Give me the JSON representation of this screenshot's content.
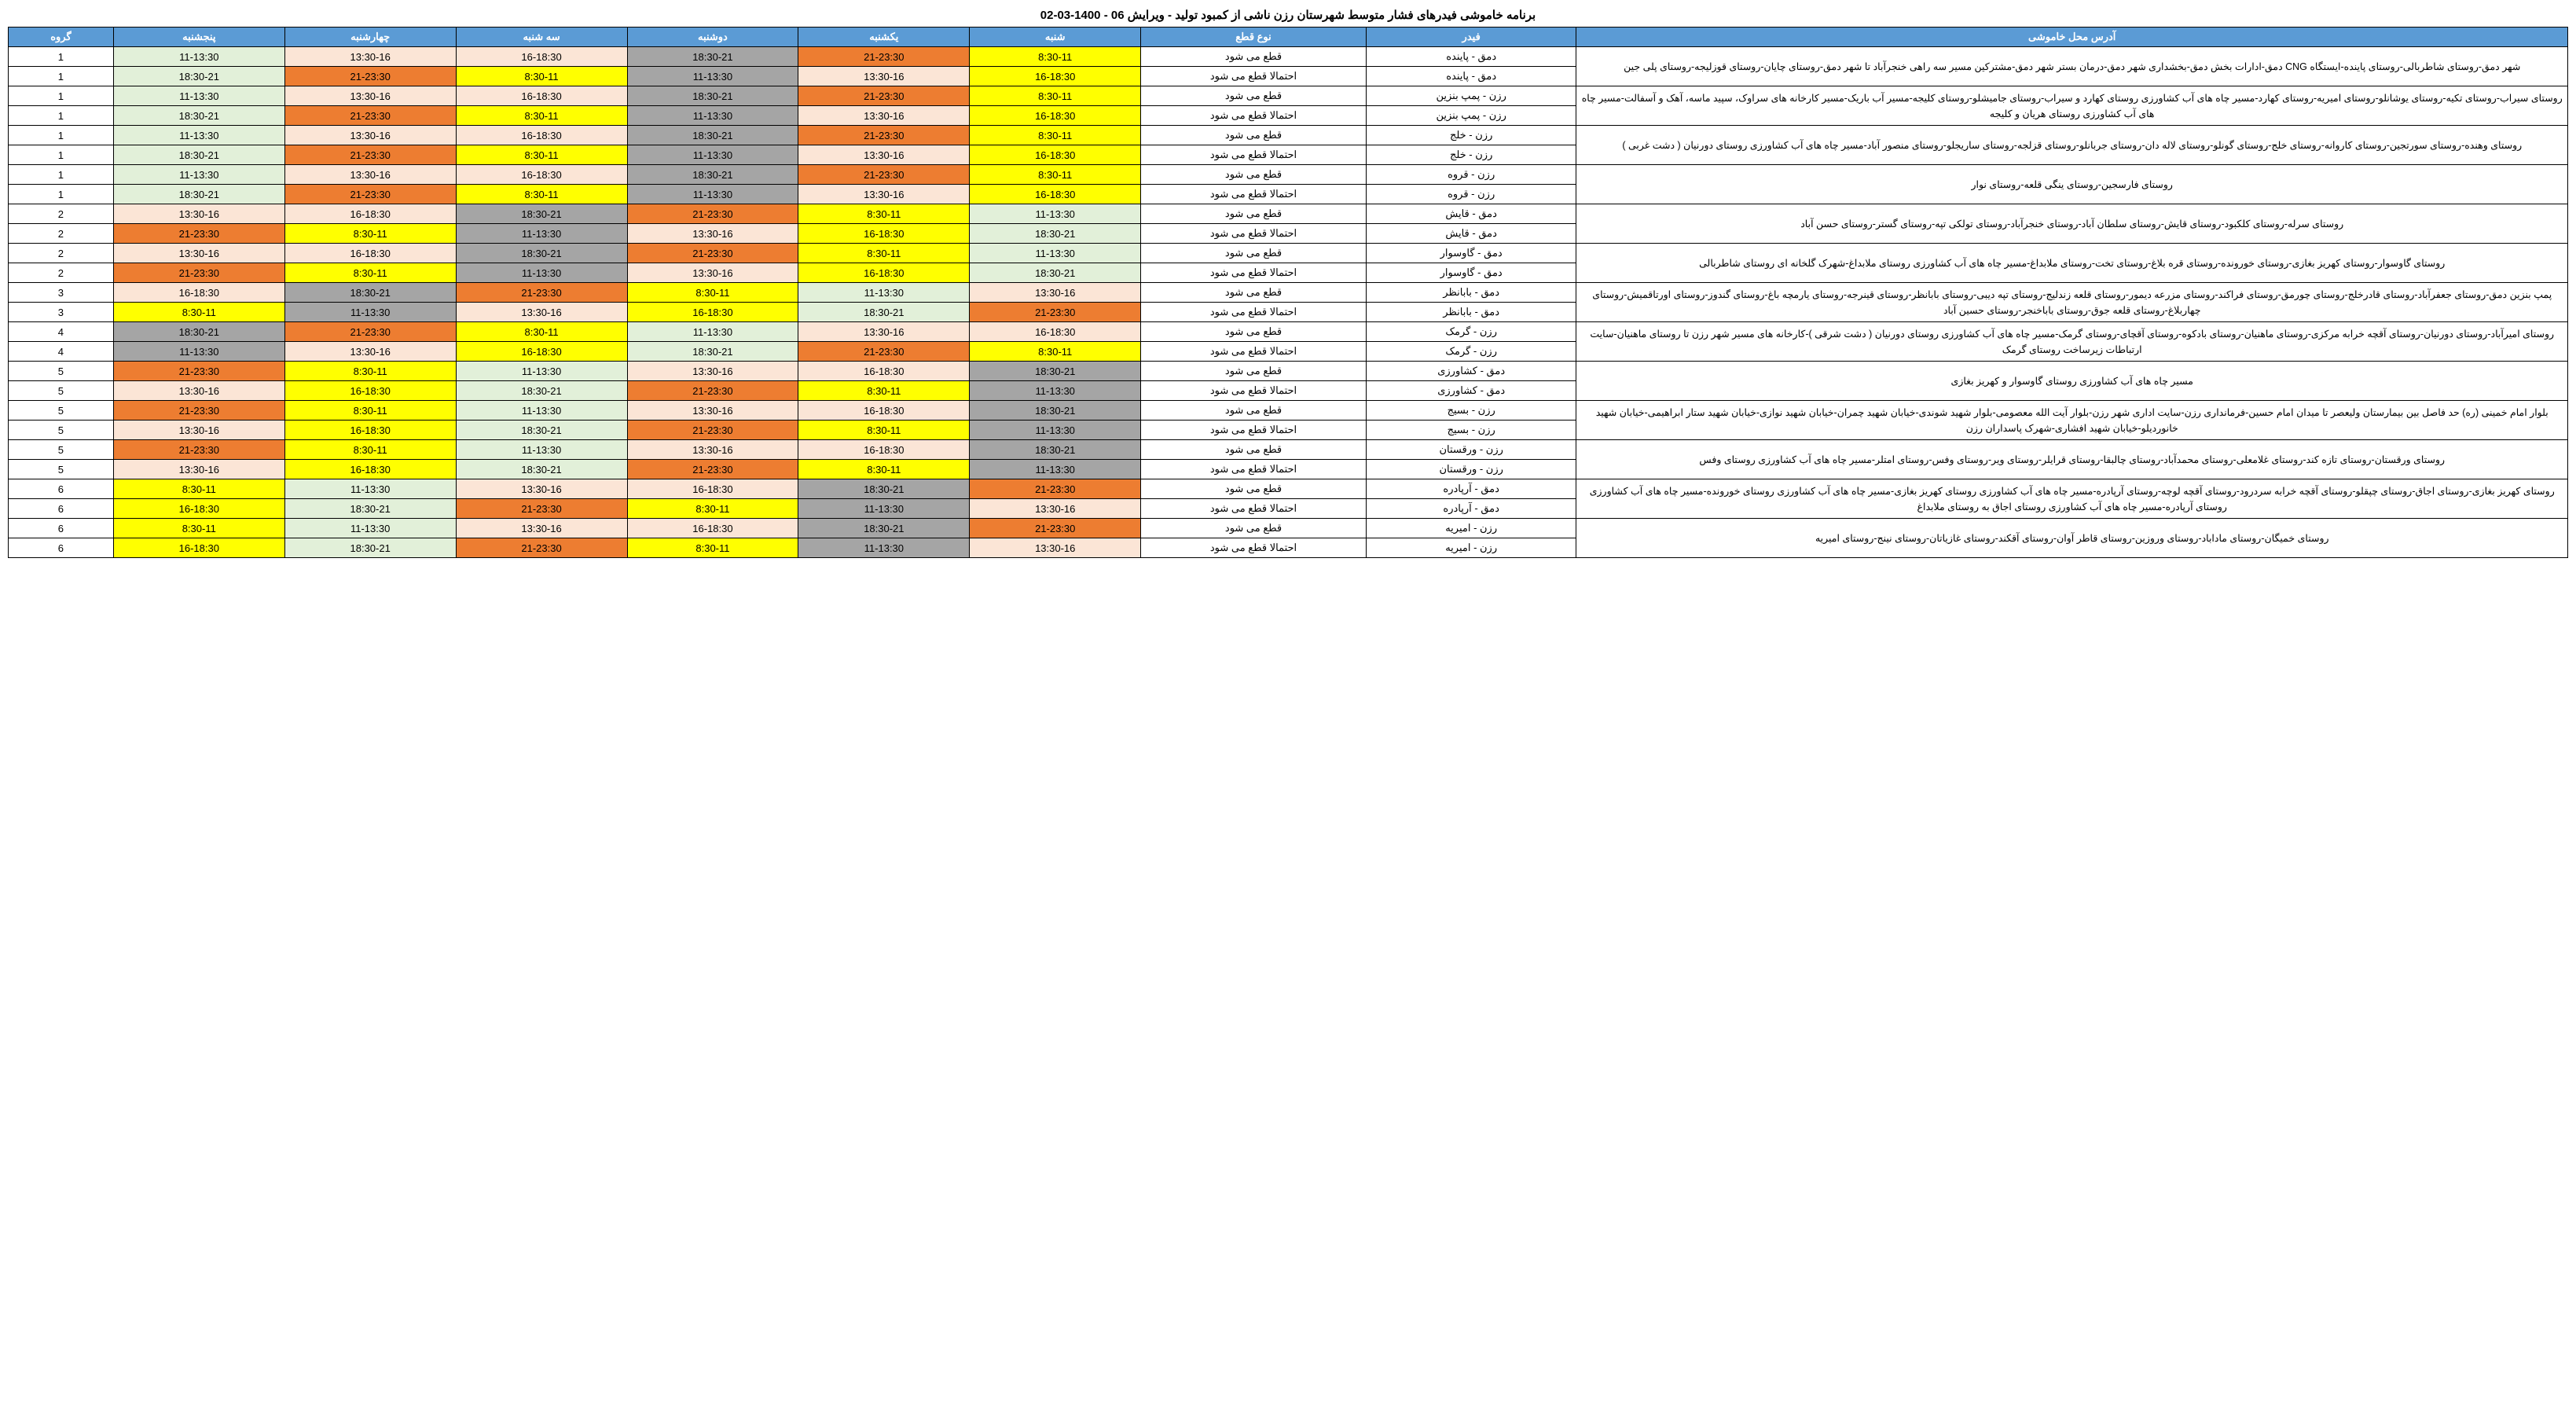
{
  "title": "برنامه خاموشی فیدرهای فشار متوسط شهرستان رزن ناشی از کمبود تولید - ویرایش 06 - 1400-03-02",
  "colors": {
    "header": "#5b9bd5",
    "c1": "#ffff00",
    "c2": "#ed7d31",
    "c3": "#a5a5a5",
    "c4": "#fbe5d6",
    "c5": "#e2f0d9"
  },
  "headers": {
    "address": "آدرس محل خاموشی",
    "feeder": "فیدر",
    "type": "نوع قطع",
    "sat": "شنبه",
    "sun": "یکشنبه",
    "mon": "دوشنبه",
    "tue": "سه شنبه",
    "wed": "چهارشنبه",
    "thu": "پنجشنبه",
    "group": "گروه"
  },
  "slots": {
    "s1": "8:30-11",
    "s2": "11-13:30",
    "s3": "13:30-16",
    "s4": "16-18:30",
    "s5": "18:30-21",
    "s6": "21-23:30"
  },
  "types": {
    "q": "قطع می شود",
    "e": "احتمالا قطع می شود"
  },
  "pairs": [
    {
      "addr": "شهر دمق-روستای شاطربالی-روستای پاینده-ایستگاه CNG دمق-ادارات بخش دمق-بخشداری شهر دمق-درمان بستر شهر دمق-مشترکین مسیر سه راهی خنجرآباد تا شهر دمق-روستای چایان-روستای قوزلیجه-روستای پلی جین",
      "feeder": "دمق - پاینده",
      "group": "1",
      "a": [
        "s1",
        "s6",
        "s5",
        "s4",
        "s3",
        "s2"
      ],
      "ac": [
        "c1",
        "c2",
        "c3",
        "c4",
        "c4",
        "c5"
      ],
      "b": [
        "s4",
        "s3",
        "s2",
        "s1",
        "s6",
        "s5"
      ],
      "bc": [
        "c1",
        "c4",
        "c3",
        "c1",
        "c2",
        "c5"
      ]
    },
    {
      "addr": "روستای سیراب-روستای تکیه-روستای یوشانلو-روستای امیریه-روستای کهارد-مسیر چاه های آب کشاورزی روستای کهارد و سیراب-روستای جامیشلو-روستای کلیجه-مسیر آب باریک-مسیر کارخانه های سراوک، سپید ماسه، آهک و آسفالت-مسیر چاه های آب کشاورزی روستای هریان و کلیجه",
      "feeder": "رزن - پمپ بنزین",
      "group": "1",
      "a": [
        "s1",
        "s6",
        "s5",
        "s4",
        "s3",
        "s2"
      ],
      "ac": [
        "c1",
        "c2",
        "c3",
        "c4",
        "c4",
        "c5"
      ],
      "b": [
        "s4",
        "s3",
        "s2",
        "s1",
        "s6",
        "s5"
      ],
      "bc": [
        "c1",
        "c4",
        "c3",
        "c1",
        "c2",
        "c5"
      ]
    },
    {
      "addr": "روستای وهنده-روستای سورتجین-روستای کاروانه-روستای خلج-روستای گونلو-روستای لاله دان-روستای جربانلو-روستای قزلجه-روستای ساریجلو-روستای منصور آباد-مسیر چاه های آب کشاورزی روستای دورنیان ( دشت غربی )",
      "feeder": "رزن - خلج",
      "group": "1",
      "a": [
        "s1",
        "s6",
        "s5",
        "s4",
        "s3",
        "s2"
      ],
      "ac": [
        "c1",
        "c2",
        "c3",
        "c4",
        "c4",
        "c5"
      ],
      "b": [
        "s4",
        "s3",
        "s2",
        "s1",
        "s6",
        "s5"
      ],
      "bc": [
        "c1",
        "c4",
        "c3",
        "c1",
        "c2",
        "c5"
      ]
    },
    {
      "addr": "روستای فارسجین-روستای ینگی قلعه-روستای نوار",
      "feeder": "رزن - قروه",
      "group": "1",
      "a": [
        "s1",
        "s6",
        "s5",
        "s4",
        "s3",
        "s2"
      ],
      "ac": [
        "c1",
        "c2",
        "c3",
        "c4",
        "c4",
        "c5"
      ],
      "b": [
        "s4",
        "s3",
        "s2",
        "s1",
        "s6",
        "s5"
      ],
      "bc": [
        "c1",
        "c4",
        "c3",
        "c1",
        "c2",
        "c5"
      ]
    },
    {
      "addr": "روستای سرله-روستای کلکبود-روستای قایش-روستای سلطان آباد-روستای خنجرآباد-روستای تولکی تپه-روستای گستر-روستای حسن آباد",
      "feeder": "دمق - قایش",
      "group": "2",
      "a": [
        "s2",
        "s1",
        "s6",
        "s5",
        "s4",
        "s3"
      ],
      "ac": [
        "c5",
        "c1",
        "c2",
        "c3",
        "c4",
        "c4"
      ],
      "b": [
        "s5",
        "s4",
        "s3",
        "s2",
        "s1",
        "s6"
      ],
      "bc": [
        "c5",
        "c1",
        "c4",
        "c3",
        "c1",
        "c2"
      ]
    },
    {
      "addr": "روستای گاوسوار-روستای کهریز بغازی-روستای خورونده-روستای قره بلاغ-روستای تخت-روستای ملابداغ-مسیر چاه های آب کشاورزی روستای ملابداغ-شهرک گلخانه ای روستای شاطربالی",
      "feeder": "دمق - گاوسوار",
      "group": "2",
      "a": [
        "s2",
        "s1",
        "s6",
        "s5",
        "s4",
        "s3"
      ],
      "ac": [
        "c5",
        "c1",
        "c2",
        "c3",
        "c4",
        "c4"
      ],
      "b": [
        "s5",
        "s4",
        "s3",
        "s2",
        "s1",
        "s6"
      ],
      "bc": [
        "c5",
        "c1",
        "c4",
        "c3",
        "c1",
        "c2"
      ]
    },
    {
      "addr": "پمپ بنزین دمق-روستای جعفرآباد-روستای قادرخلج-روستای چورمق-روستای فراکند-روستای مزرعه دیمور-روستای قلعه زندلیج-روستای تپه دیبی-روستای بابانظر-روستای قینرجه-روستای یارمچه باغ-روستای گندوز-روستای اورتاقمیش-روستای چهاربلاغ-روستای قلعه جوق-روستای باباخنجر-روستای حسین آباد",
      "feeder": "دمق - بابانظر",
      "group": "3",
      "a": [
        "s3",
        "s2",
        "s1",
        "s6",
        "s5",
        "s4"
      ],
      "ac": [
        "c4",
        "c5",
        "c1",
        "c2",
        "c3",
        "c4"
      ],
      "b": [
        "s6",
        "s5",
        "s4",
        "s3",
        "s2",
        "s1"
      ],
      "bc": [
        "c2",
        "c5",
        "c1",
        "c4",
        "c3",
        "c1"
      ]
    },
    {
      "addr": "روستای امیرآباد-روستای دورنیان-روستای آقچه خرابه مرکزی-روستای ماهنیان-روستای بادکوه-روستای آقچای-روستای گرمک-مسیر چاه های آب کشاورزی روستای دورنیان ( دشت شرقی )-کارخانه های مسیر شهر رزن تا روستای ماهنیان-سایت ارتباطات زیرساخت روستای گرمک",
      "feeder": "رزن - گرمک",
      "group": "4",
      "a": [
        "s4",
        "s3",
        "s2",
        "s1",
        "s6",
        "s5"
      ],
      "ac": [
        "c4",
        "c4",
        "c5",
        "c1",
        "c2",
        "c3"
      ],
      "b": [
        "s1",
        "s6",
        "s5",
        "s4",
        "s3",
        "s2"
      ],
      "bc": [
        "c1",
        "c2",
        "c5",
        "c1",
        "c4",
        "c3"
      ]
    },
    {
      "addr": "مسیر چاه های آب کشاورزی روستای گاوسوار و کهریز بغازی",
      "feeder": "دمق - کشاورزی",
      "group": "5",
      "a": [
        "s5",
        "s4",
        "s3",
        "s2",
        "s1",
        "s6"
      ],
      "ac": [
        "c3",
        "c4",
        "c4",
        "c5",
        "c1",
        "c2"
      ],
      "b": [
        "s2",
        "s1",
        "s6",
        "s5",
        "s4",
        "s3"
      ],
      "bc": [
        "c3",
        "c1",
        "c2",
        "c5",
        "c1",
        "c4"
      ]
    },
    {
      "addr": "بلوار امام خمینی (ره) حد فاصل بین بیمارستان ولیعصر تا میدان امام حسین-فرمانداری رزن-سایت اداری شهر رزن-بلوار آیت الله معصومی-بلوار شهید شوندی-خیابان شهید چمران-خیابان شهید نوازی-خیابان شهید ستار ابراهیمی-خیابان شهید خانوردیلو-خیابان شهید افشاری-شهرک پاسداران رزن",
      "feeder": "رزن - بسیج",
      "group": "5",
      "a": [
        "s5",
        "s4",
        "s3",
        "s2",
        "s1",
        "s6"
      ],
      "ac": [
        "c3",
        "c4",
        "c4",
        "c5",
        "c1",
        "c2"
      ],
      "b": [
        "s2",
        "s1",
        "s6",
        "s5",
        "s4",
        "s3"
      ],
      "bc": [
        "c3",
        "c1",
        "c2",
        "c5",
        "c1",
        "c4"
      ]
    },
    {
      "addr": "روستای ورقستان-روستای تازه کند-روستای غلامعلی-روستای محمدآباد-روستای چالبقا-روستای قرایلر-روستای ویر-روستای وفس-روستای امتلر-مسیر چاه های آب کشاورزی روستای وفس",
      "feeder": "رزن - ورقستان",
      "group": "5",
      "a": [
        "s5",
        "s4",
        "s3",
        "s2",
        "s1",
        "s6"
      ],
      "ac": [
        "c3",
        "c4",
        "c4",
        "c5",
        "c1",
        "c2"
      ],
      "b": [
        "s2",
        "s1",
        "s6",
        "s5",
        "s4",
        "s3"
      ],
      "bc": [
        "c3",
        "c1",
        "c2",
        "c5",
        "c1",
        "c4"
      ]
    },
    {
      "addr": "روستای کهریز بغازی-روستای اجاق-روستای چپقلو-روستای آقچه خرابه سردرود-روستای آقچه لوچه-روستای آرپادره-مسیر چاه های آب کشاورزی روستای کهریز بغازی-مسیر چاه های آب کشاورزی روستای خورونده-مسیر چاه های آب کشاورزی روستای آرپادره-مسیر چاه های آب کشاورزی روستای اجاق به روستای ملابداغ",
      "feeder": "دمق - آرپادره",
      "group": "6",
      "a": [
        "s6",
        "s5",
        "s4",
        "s3",
        "s2",
        "s1"
      ],
      "ac": [
        "c2",
        "c3",
        "c4",
        "c4",
        "c5",
        "c1"
      ],
      "b": [
        "s3",
        "s2",
        "s1",
        "s6",
        "s5",
        "s4"
      ],
      "bc": [
        "c4",
        "c3",
        "c1",
        "c2",
        "c5",
        "c1"
      ]
    },
    {
      "addr": "روستای خمیگان-روستای ماداباد-روستای وروزین-روستای قاطر آوان-روستای آقکند-روستای غازیاتان-روستای نینج-روستای امیریه",
      "feeder": "رزن - امیریه",
      "group": "6",
      "a": [
        "s6",
        "s5",
        "s4",
        "s3",
        "s2",
        "s1"
      ],
      "ac": [
        "c2",
        "c3",
        "c4",
        "c4",
        "c5",
        "c1"
      ],
      "b": [
        "s3",
        "s2",
        "s1",
        "s6",
        "s5",
        "s4"
      ],
      "bc": [
        "c4",
        "c3",
        "c1",
        "c2",
        "c5",
        "c1"
      ]
    }
  ]
}
